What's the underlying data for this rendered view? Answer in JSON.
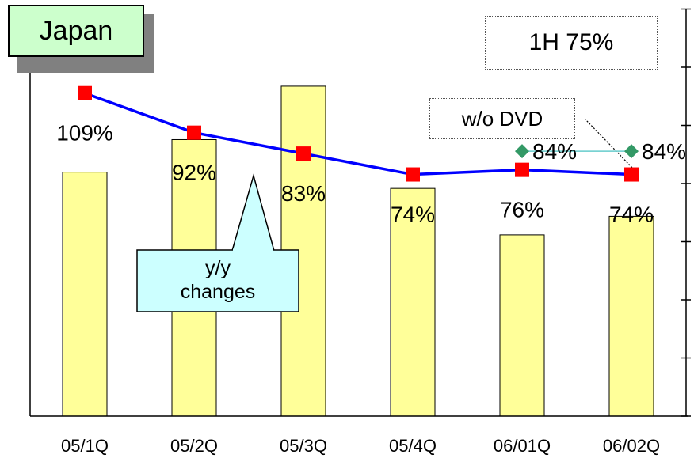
{
  "chart_data": {
    "type": "bar",
    "title": "Japan",
    "categories": [
      "05/1Q",
      "05/2Q",
      "05/3Q",
      "05/4Q",
      "06/01Q",
      "06/02Q"
    ],
    "bar_values": [
      105,
      119,
      142,
      98,
      78,
      86
    ],
    "ylim": [
      0,
      175
    ],
    "line_series": {
      "values": [
        109,
        92,
        83,
        74,
        76,
        74
      ],
      "labels": [
        "109%",
        "92%",
        "83%",
        "74%",
        "76%",
        "74%"
      ]
    },
    "wo_dvd_series": {
      "category_indices": [
        4,
        5
      ],
      "values": [
        84,
        84
      ],
      "labels": [
        "84%",
        "84%"
      ]
    },
    "ylim_line": [
      -30,
      145
    ],
    "grid": false,
    "colors": {
      "bar_fill": "#ffff99",
      "line": "#0000ff",
      "line_marker": "#ff0000",
      "wo_dvd_line": "#66cccc",
      "wo_dvd_marker": "#339966",
      "callout_fill": "#ccffff",
      "title_fill": "#ccffcc"
    }
  },
  "annotations": {
    "half_year": "1H 75%",
    "wo_dvd": "w/o DVD",
    "yy_line1": "y/y",
    "yy_line2": "changes"
  }
}
